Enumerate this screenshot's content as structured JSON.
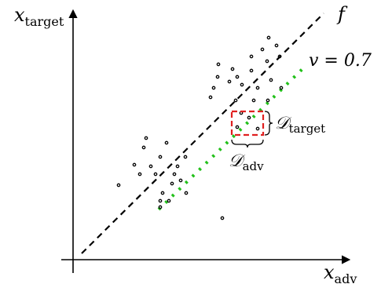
{
  "labels": {
    "y_axis_main": "x",
    "y_axis_sub": "target",
    "x_axis_main": "x",
    "x_axis_sub": "adv",
    "f": "f",
    "v_line": "v = 0.7",
    "d_target_main": "𝒟",
    "d_target_sub": "target",
    "d_adv_main": "𝒟",
    "d_adv_sub": "adv"
  },
  "colors": {
    "axis": "#000000",
    "diagonal": "#000000",
    "green_line": "#22c01a",
    "points": "#000000",
    "box": "#e02020"
  },
  "diagram": {
    "type": "scatter-diagram",
    "lines": [
      {
        "id": "f",
        "style": "dashed black",
        "meaning": "identity line"
      },
      {
        "id": "v",
        "style": "dotted green",
        "label": "v = 0.7"
      }
    ],
    "highlight_box": {
      "style": "dashed red"
    }
  }
}
